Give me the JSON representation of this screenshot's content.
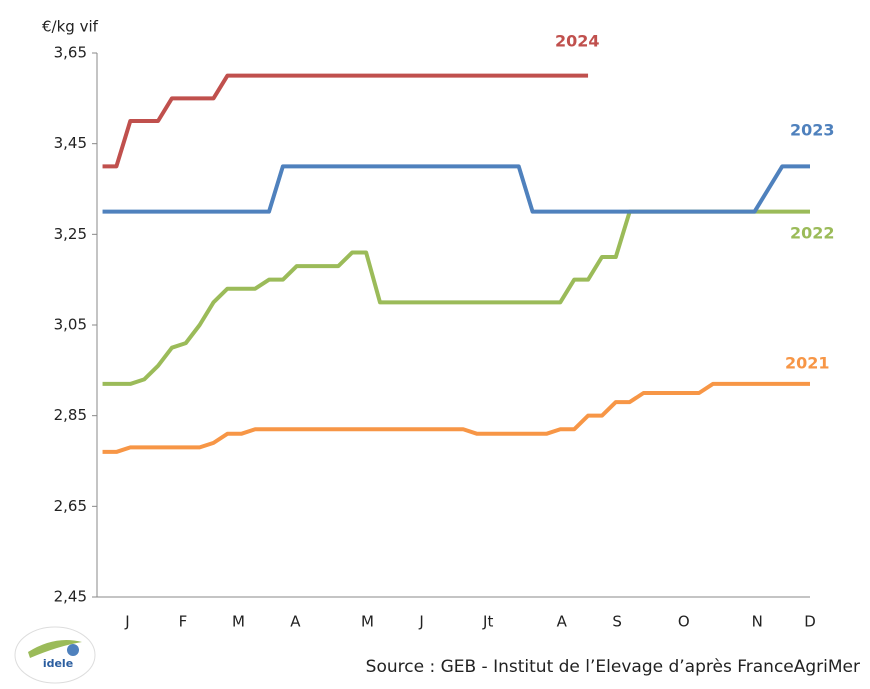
{
  "chart_data": {
    "type": "line",
    "y_label": "€/kg vif",
    "source": "Source : GEB - Institut de l’Elevage d’après FranceAgriMer",
    "logo": "idele",
    "x": [
      1,
      2,
      3,
      4,
      5,
      6,
      7,
      8,
      9,
      10,
      11,
      12,
      13,
      14,
      15,
      16,
      17,
      18,
      19,
      20,
      21,
      22,
      23,
      24,
      25,
      26,
      27,
      28,
      29,
      30,
      31,
      32,
      33,
      34,
      35,
      36,
      37,
      38,
      39,
      40,
      41,
      42,
      43,
      44,
      45,
      46,
      47,
      48,
      49,
      50,
      51,
      52
    ],
    "xlim": [
      0.6,
      52
    ],
    "xticks": [
      {
        "value": 2.8,
        "label": "J"
      },
      {
        "value": 6.8,
        "label": "F"
      },
      {
        "value": 10.8,
        "label": "M"
      },
      {
        "value": 14.9,
        "label": "A"
      },
      {
        "value": 20.1,
        "label": "M"
      },
      {
        "value": 24,
        "label": "J"
      },
      {
        "value": 28.8,
        "label": "Jt"
      },
      {
        "value": 34.1,
        "label": "A"
      },
      {
        "value": 38.1,
        "label": "S"
      },
      {
        "value": 42.9,
        "label": "O"
      },
      {
        "value": 48.2,
        "label": "N"
      },
      {
        "value": 52,
        "label": "D"
      }
    ],
    "ylim": [
      2.45,
      3.65
    ],
    "yticks": [
      {
        "value": 2.45,
        "label": "2,45"
      },
      {
        "value": 2.65,
        "label": "2,65"
      },
      {
        "value": 2.85,
        "label": "2,85"
      },
      {
        "value": 3.05,
        "label": "3,05"
      },
      {
        "value": 3.25,
        "label": "3,25"
      },
      {
        "value": 3.45,
        "label": "3,45"
      },
      {
        "value": 3.65,
        "label": "3,65"
      }
    ],
    "grid": false,
    "series": [
      {
        "name": "2024",
        "color": "#c0504d",
        "values": [
          3.4,
          3.4,
          3.5,
          3.5,
          3.5,
          3.55,
          3.55,
          3.55,
          3.55,
          3.6,
          3.6,
          3.6,
          3.6,
          3.6,
          3.6,
          3.6,
          3.6,
          3.6,
          3.6,
          3.6,
          3.6,
          3.6,
          3.6,
          3.6,
          3.6,
          3.6,
          3.6,
          3.6,
          3.6,
          3.6,
          3.6,
          3.6,
          3.6,
          3.6,
          3.6,
          3.6,
          null,
          null,
          null,
          null,
          null,
          null,
          null,
          null,
          null,
          null,
          null,
          null,
          null,
          null,
          null,
          null
        ]
      },
      {
        "name": "2023",
        "color": "#4f81bd",
        "values": [
          3.3,
          3.3,
          3.3,
          3.3,
          3.3,
          3.3,
          3.3,
          3.3,
          3.3,
          3.3,
          3.3,
          3.3,
          3.3,
          3.4,
          3.4,
          3.4,
          3.4,
          3.4,
          3.4,
          3.4,
          3.4,
          3.4,
          3.4,
          3.4,
          3.4,
          3.4,
          3.4,
          3.4,
          3.4,
          3.4,
          3.4,
          3.3,
          3.3,
          3.3,
          3.3,
          3.3,
          3.3,
          3.3,
          3.3,
          3.3,
          3.3,
          3.3,
          3.3,
          3.3,
          3.3,
          3.3,
          3.3,
          3.3,
          3.35,
          3.4,
          3.4,
          3.4
        ]
      },
      {
        "name": "2022",
        "color": "#9bbb59",
        "values": [
          2.92,
          2.92,
          2.92,
          2.93,
          2.96,
          3.0,
          3.01,
          3.05,
          3.1,
          3.13,
          3.13,
          3.13,
          3.15,
          3.15,
          3.18,
          3.18,
          3.18,
          3.18,
          3.21,
          3.21,
          3.1,
          3.1,
          3.1,
          3.1,
          3.1,
          3.1,
          3.1,
          3.1,
          3.1,
          3.1,
          3.1,
          3.1,
          3.1,
          3.1,
          3.15,
          3.15,
          3.2,
          3.2,
          3.3,
          3.3,
          3.3,
          3.3,
          3.3,
          3.3,
          3.3,
          3.3,
          3.3,
          3.3,
          3.3,
          3.3,
          3.3,
          3.3
        ]
      },
      {
        "name": "2021",
        "color": "#f79646",
        "values": [
          2.77,
          2.77,
          2.78,
          2.78,
          2.78,
          2.78,
          2.78,
          2.78,
          2.79,
          2.81,
          2.81,
          2.82,
          2.82,
          2.82,
          2.82,
          2.82,
          2.82,
          2.82,
          2.82,
          2.82,
          2.82,
          2.82,
          2.82,
          2.82,
          2.82,
          2.82,
          2.82,
          2.81,
          2.81,
          2.81,
          2.81,
          2.81,
          2.81,
          2.82,
          2.82,
          2.85,
          2.85,
          2.88,
          2.88,
          2.9,
          2.9,
          2.9,
          2.9,
          2.9,
          2.92,
          2.92,
          2.92,
          2.92,
          2.92,
          2.92,
          2.92,
          2.92
        ]
      }
    ]
  }
}
